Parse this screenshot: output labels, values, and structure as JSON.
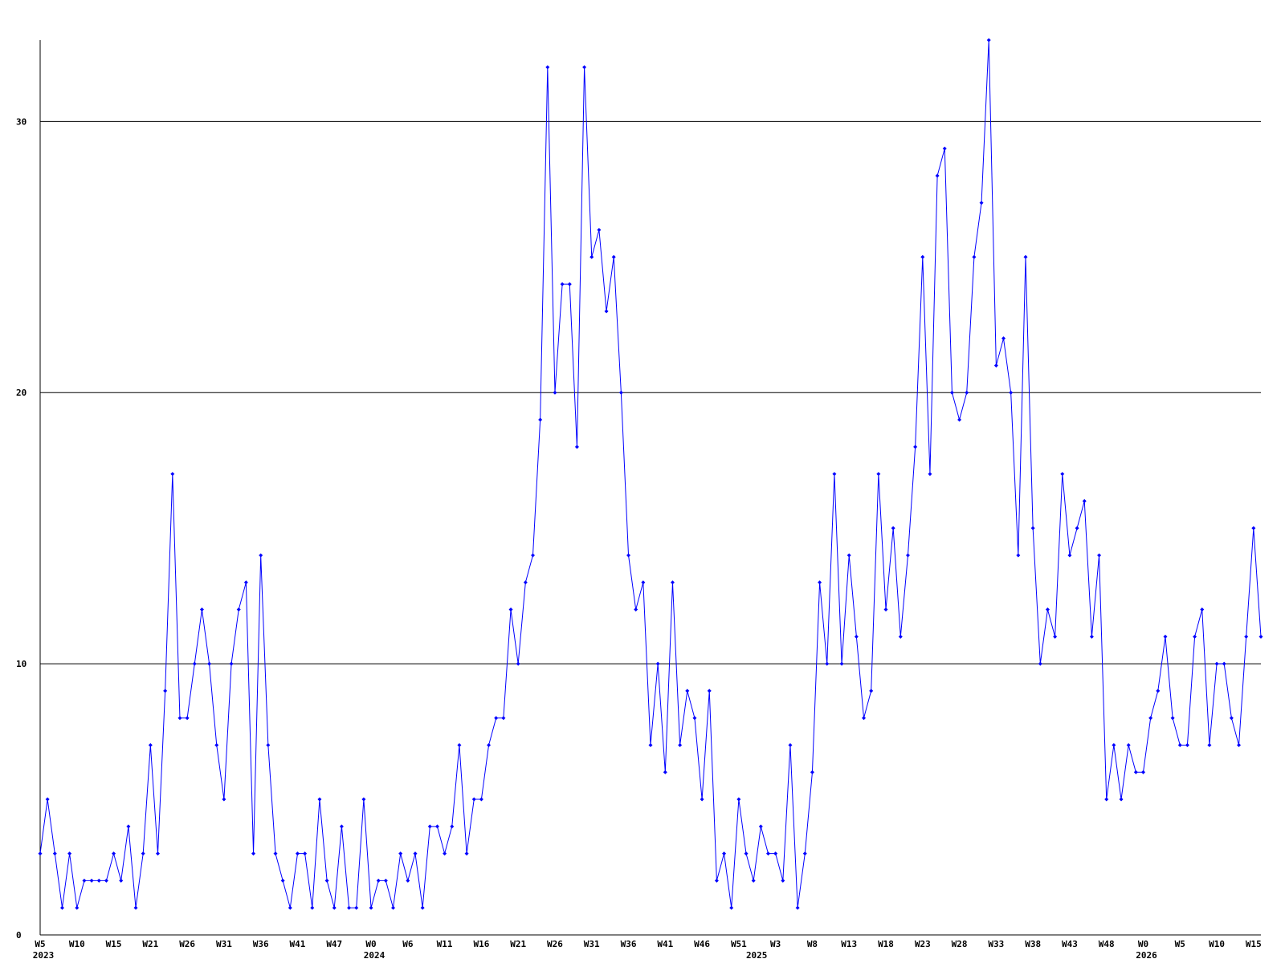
{
  "chart_data": {
    "type": "line",
    "categories": [
      "W5",
      null,
      null,
      null,
      null,
      "W10",
      null,
      null,
      null,
      null,
      "W15",
      null,
      null,
      null,
      null,
      "W21",
      null,
      null,
      null,
      null,
      "W26",
      null,
      null,
      null,
      null,
      "W31",
      null,
      null,
      null,
      null,
      "W36",
      null,
      null,
      null,
      null,
      "W41",
      null,
      null,
      null,
      null,
      "W47",
      null,
      null,
      null,
      null,
      "W0",
      null,
      null,
      null,
      null,
      "W6",
      null,
      null,
      null,
      null,
      "W11",
      null,
      null,
      null,
      null,
      "W16",
      null,
      null,
      null,
      null,
      "W21",
      null,
      null,
      null,
      null,
      "W26",
      null,
      null,
      null,
      null,
      "W31",
      null,
      null,
      null,
      null,
      "W36",
      null,
      null,
      null,
      null,
      "W41",
      null,
      null,
      null,
      null,
      "W46",
      null,
      null,
      null,
      null,
      "W51",
      null,
      null,
      null,
      null,
      "W3",
      null,
      null,
      null,
      null,
      "W8",
      null,
      null,
      null,
      null,
      "W13",
      null,
      null,
      null,
      null,
      "W18",
      null,
      null,
      null,
      null,
      "W23",
      null,
      null,
      null,
      null,
      "W28",
      null,
      null,
      null,
      null,
      "W33",
      null,
      null,
      null,
      null,
      "W38",
      null,
      null,
      null,
      null,
      "W43",
      null,
      null,
      null,
      null,
      "W48",
      null,
      null,
      null,
      null,
      "W0",
      null,
      null,
      null,
      null,
      "W5",
      null,
      null,
      null,
      null,
      "W10",
      null,
      null,
      null,
      null,
      "W15",
      null
    ],
    "year_ticks": [
      {
        "value": 0,
        "label": "2023"
      },
      {
        "value": 45,
        "label": "2024"
      },
      {
        "value": 97,
        "label": "2025"
      },
      {
        "value": 150,
        "label": "2026"
      }
    ],
    "series": [
      {
        "color": "#0000ff",
        "values": [
          3,
          5,
          3,
          1,
          3,
          1,
          2,
          2,
          2,
          2,
          3,
          2,
          4,
          1,
          3,
          7,
          3,
          9,
          17,
          8,
          8,
          10,
          12,
          10,
          7,
          5,
          10,
          12,
          13,
          3,
          14,
          7,
          3,
          2,
          1,
          3,
          3,
          1,
          5,
          2,
          1,
          4,
          1,
          1,
          5,
          1,
          2,
          2,
          1,
          3,
          2,
          3,
          1,
          4,
          4,
          3,
          4,
          7,
          3,
          5,
          5,
          7,
          8,
          8,
          12,
          10,
          13,
          14,
          19,
          32,
          20,
          24,
          24,
          18,
          32,
          25,
          26,
          23,
          25,
          20,
          14,
          12,
          13,
          7,
          10,
          6,
          13,
          7,
          9,
          8,
          5,
          9,
          2,
          3,
          1,
          5,
          3,
          2,
          4,
          3,
          3,
          2,
          7,
          1,
          3,
          6,
          13,
          10,
          17,
          10,
          14,
          11,
          8,
          9,
          17,
          12,
          15,
          11,
          14,
          18,
          25,
          17,
          28,
          29,
          20,
          19,
          20,
          25,
          27,
          33,
          21,
          22,
          20,
          14,
          25,
          15,
          10,
          12,
          11,
          17,
          14,
          15,
          16,
          11,
          14,
          5,
          7,
          5,
          7,
          6,
          6,
          8,
          9,
          11,
          8,
          7,
          7,
          11,
          12,
          7,
          10,
          10,
          8,
          7,
          11,
          15,
          11
        ]
      }
    ],
    "ylim": [
      0,
      33
    ],
    "yticks": [
      0,
      10,
      20,
      30
    ],
    "grid": true
  }
}
